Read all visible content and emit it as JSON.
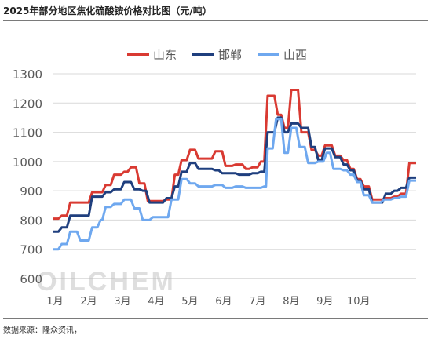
{
  "header": {
    "title": "2025年部分地区焦化硫酸铵价格对比图（元/吨）"
  },
  "footer": {
    "source": "数据来源：隆众资讯，"
  },
  "watermark": "OILCHEM",
  "chart_data": {
    "type": "line",
    "title": "2025年部分地区焦化硫酸铵价格对比图（元/吨）",
    "xlabel": "",
    "ylabel": "",
    "ylim": [
      600,
      1300
    ],
    "yticks": [
      600,
      700,
      800,
      900,
      1000,
      1100,
      1200,
      1300
    ],
    "xlim": [
      0,
      10.75
    ],
    "xticks": [
      {
        "pos": 0,
        "label": "1月"
      },
      {
        "pos": 1,
        "label": "2月"
      },
      {
        "pos": 2,
        "label": "3月"
      },
      {
        "pos": 3,
        "label": "4月"
      },
      {
        "pos": 4,
        "label": "5月"
      },
      {
        "pos": 5,
        "label": "6月"
      },
      {
        "pos": 6,
        "label": "7月"
      },
      {
        "pos": 7,
        "label": "8月"
      },
      {
        "pos": 8,
        "label": "9月"
      },
      {
        "pos": 9,
        "label": "10月"
      }
    ],
    "grid": "horizontal",
    "legend_position": "top-center",
    "series": [
      {
        "name": "山东",
        "color": "#d93a32",
        "points": [
          [
            0,
            805
          ],
          [
            0.15,
            805
          ],
          [
            0.25,
            815
          ],
          [
            0.4,
            815
          ],
          [
            0.5,
            860
          ],
          [
            1.05,
            860
          ],
          [
            1.15,
            895
          ],
          [
            1.45,
            895
          ],
          [
            1.55,
            920
          ],
          [
            1.7,
            920
          ],
          [
            1.8,
            955
          ],
          [
            2.0,
            955
          ],
          [
            2.1,
            965
          ],
          [
            2.2,
            965
          ],
          [
            2.3,
            980
          ],
          [
            2.45,
            980
          ],
          [
            2.55,
            925
          ],
          [
            2.7,
            925
          ],
          [
            2.8,
            865
          ],
          [
            3.0,
            865
          ],
          [
            3.1,
            865
          ],
          [
            3.25,
            865
          ],
          [
            3.35,
            870
          ],
          [
            3.5,
            870
          ],
          [
            3.6,
            955
          ],
          [
            3.7,
            955
          ],
          [
            3.8,
            1005
          ],
          [
            3.95,
            1005
          ],
          [
            4.05,
            1040
          ],
          [
            4.2,
            1040
          ],
          [
            4.3,
            1010
          ],
          [
            4.7,
            1010
          ],
          [
            4.8,
            1035
          ],
          [
            5.0,
            1035
          ],
          [
            5.1,
            985
          ],
          [
            5.3,
            985
          ],
          [
            5.4,
            990
          ],
          [
            5.6,
            990
          ],
          [
            5.7,
            975
          ],
          [
            5.8,
            975
          ],
          [
            5.9,
            980
          ],
          [
            6.05,
            980
          ],
          [
            6.15,
            1000
          ],
          [
            6.25,
            1000
          ],
          [
            6.35,
            1225
          ],
          [
            6.55,
            1225
          ],
          [
            6.65,
            1160
          ],
          [
            6.75,
            1160
          ],
          [
            6.85,
            1115
          ],
          [
            6.95,
            1115
          ],
          [
            7.05,
            1245
          ],
          [
            7.25,
            1245
          ],
          [
            7.35,
            1100
          ],
          [
            7.55,
            1100
          ],
          [
            7.65,
            1040
          ],
          [
            7.75,
            1040
          ],
          [
            7.85,
            1020
          ],
          [
            7.95,
            1020
          ],
          [
            8.05,
            1055
          ],
          [
            8.25,
            1055
          ],
          [
            8.35,
            1020
          ],
          [
            8.5,
            1020
          ],
          [
            8.6,
            1005
          ],
          [
            8.7,
            1005
          ],
          [
            8.8,
            975
          ],
          [
            8.9,
            975
          ],
          [
            9.0,
            940
          ],
          [
            9.1,
            940
          ],
          [
            9.2,
            915
          ],
          [
            9.35,
            915
          ],
          [
            9.45,
            870
          ],
          [
            9.75,
            870
          ],
          [
            9.85,
            875
          ],
          [
            10.0,
            875
          ],
          [
            10.1,
            880
          ],
          [
            10.2,
            880
          ],
          [
            10.3,
            890
          ],
          [
            10.45,
            890
          ],
          [
            10.55,
            995
          ],
          [
            10.75,
            995
          ]
        ]
      },
      {
        "name": "邯郸",
        "color": "#1f3f7e",
        "points": [
          [
            0,
            760
          ],
          [
            0.15,
            760
          ],
          [
            0.25,
            775
          ],
          [
            0.4,
            775
          ],
          [
            0.5,
            815
          ],
          [
            1.05,
            815
          ],
          [
            1.15,
            880
          ],
          [
            1.45,
            880
          ],
          [
            1.55,
            895
          ],
          [
            1.7,
            895
          ],
          [
            1.8,
            905
          ],
          [
            2.0,
            905
          ],
          [
            2.1,
            930
          ],
          [
            2.3,
            930
          ],
          [
            2.4,
            905
          ],
          [
            2.55,
            905
          ],
          [
            2.65,
            900
          ],
          [
            2.75,
            900
          ],
          [
            2.85,
            860
          ],
          [
            3.25,
            860
          ],
          [
            3.35,
            875
          ],
          [
            3.5,
            875
          ],
          [
            3.6,
            915
          ],
          [
            3.7,
            915
          ],
          [
            3.8,
            965
          ],
          [
            3.95,
            965
          ],
          [
            4.05,
            995
          ],
          [
            4.2,
            995
          ],
          [
            4.3,
            975
          ],
          [
            4.7,
            975
          ],
          [
            4.8,
            970
          ],
          [
            4.9,
            970
          ],
          [
            5.0,
            960
          ],
          [
            5.4,
            960
          ],
          [
            5.5,
            955
          ],
          [
            5.8,
            955
          ],
          [
            5.9,
            960
          ],
          [
            6.05,
            960
          ],
          [
            6.15,
            965
          ],
          [
            6.25,
            965
          ],
          [
            6.35,
            1100
          ],
          [
            6.55,
            1100
          ],
          [
            6.65,
            1150
          ],
          [
            6.75,
            1150
          ],
          [
            6.85,
            1100
          ],
          [
            6.95,
            1100
          ],
          [
            7.05,
            1130
          ],
          [
            7.25,
            1130
          ],
          [
            7.35,
            1115
          ],
          [
            7.55,
            1115
          ],
          [
            7.65,
            1050
          ],
          [
            7.75,
            1050
          ],
          [
            7.85,
            1005
          ],
          [
            7.95,
            1005
          ],
          [
            8.05,
            1045
          ],
          [
            8.25,
            1045
          ],
          [
            8.35,
            1015
          ],
          [
            8.5,
            1015
          ],
          [
            8.6,
            990
          ],
          [
            8.7,
            990
          ],
          [
            8.8,
            970
          ],
          [
            8.9,
            970
          ],
          [
            9.0,
            935
          ],
          [
            9.1,
            935
          ],
          [
            9.2,
            905
          ],
          [
            9.35,
            905
          ],
          [
            9.45,
            860
          ],
          [
            9.75,
            860
          ],
          [
            9.85,
            890
          ],
          [
            10.0,
            890
          ],
          [
            10.1,
            900
          ],
          [
            10.2,
            900
          ],
          [
            10.3,
            910
          ],
          [
            10.45,
            910
          ],
          [
            10.55,
            945
          ],
          [
            10.75,
            945
          ]
        ]
      },
      {
        "name": "山西",
        "color": "#6fa8ef",
        "points": [
          [
            0,
            700
          ],
          [
            0.15,
            700
          ],
          [
            0.25,
            718
          ],
          [
            0.4,
            718
          ],
          [
            0.5,
            760
          ],
          [
            0.7,
            760
          ],
          [
            0.8,
            730
          ],
          [
            1.05,
            730
          ],
          [
            1.15,
            775
          ],
          [
            1.3,
            775
          ],
          [
            1.4,
            800
          ],
          [
            1.45,
            800
          ],
          [
            1.55,
            845
          ],
          [
            1.7,
            845
          ],
          [
            1.8,
            855
          ],
          [
            2.0,
            855
          ],
          [
            2.1,
            870
          ],
          [
            2.3,
            870
          ],
          [
            2.4,
            840
          ],
          [
            2.55,
            840
          ],
          [
            2.65,
            800
          ],
          [
            2.85,
            800
          ],
          [
            2.95,
            810
          ],
          [
            3.4,
            810
          ],
          [
            3.5,
            870
          ],
          [
            3.7,
            870
          ],
          [
            3.8,
            940
          ],
          [
            3.95,
            940
          ],
          [
            4.05,
            925
          ],
          [
            4.2,
            925
          ],
          [
            4.3,
            915
          ],
          [
            4.7,
            915
          ],
          [
            4.8,
            920
          ],
          [
            5.0,
            920
          ],
          [
            5.1,
            910
          ],
          [
            5.3,
            910
          ],
          [
            5.4,
            915
          ],
          [
            5.6,
            915
          ],
          [
            5.7,
            910
          ],
          [
            6.15,
            910
          ],
          [
            6.25,
            915
          ],
          [
            6.3,
            915
          ],
          [
            6.35,
            1045
          ],
          [
            6.5,
            1045
          ],
          [
            6.6,
            1145
          ],
          [
            6.75,
            1145
          ],
          [
            6.85,
            1030
          ],
          [
            6.95,
            1030
          ],
          [
            7.05,
            1115
          ],
          [
            7.2,
            1115
          ],
          [
            7.3,
            1050
          ],
          [
            7.45,
            1050
          ],
          [
            7.55,
            995
          ],
          [
            7.75,
            995
          ],
          [
            7.85,
            1000
          ],
          [
            8.0,
            1000
          ],
          [
            8.1,
            1030
          ],
          [
            8.2,
            1030
          ],
          [
            8.3,
            975
          ],
          [
            8.5,
            975
          ],
          [
            8.6,
            970
          ],
          [
            8.7,
            970
          ],
          [
            8.8,
            955
          ],
          [
            8.9,
            955
          ],
          [
            9.0,
            930
          ],
          [
            9.1,
            930
          ],
          [
            9.2,
            885
          ],
          [
            9.35,
            885
          ],
          [
            9.45,
            860
          ],
          [
            9.7,
            860
          ],
          [
            9.8,
            870
          ],
          [
            10.0,
            870
          ],
          [
            10.1,
            875
          ],
          [
            10.2,
            875
          ],
          [
            10.3,
            880
          ],
          [
            10.45,
            880
          ],
          [
            10.55,
            935
          ],
          [
            10.75,
            935
          ]
        ]
      }
    ]
  }
}
